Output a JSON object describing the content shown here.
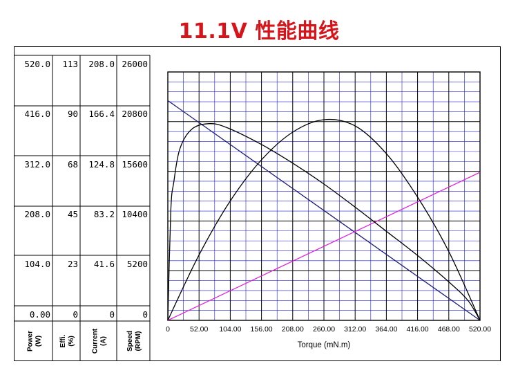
{
  "title": "11.1V 性能曲线",
  "chart_data": {
    "type": "line",
    "title": "11.1V 性能曲线",
    "xlabel": "Torque (mN.m)",
    "x_ticks": [
      "0",
      "52.00",
      "104.00",
      "156.00",
      "208.00",
      "260.00",
      "312.00",
      "364.00",
      "416.00",
      "468.00",
      "520.00"
    ],
    "xlim": [
      0,
      520
    ],
    "grid": true,
    "y_axes": [
      {
        "label": "Power (W)",
        "ticks": [
          "520.0",
          "416.0",
          "312.0",
          "208.0",
          "104.0",
          "0.00"
        ],
        "range": [
          0,
          520
        ]
      },
      {
        "label": "Effi. (%)",
        "ticks": [
          "113",
          "90",
          "68",
          "45",
          "23",
          "0"
        ],
        "range": [
          0,
          113
        ]
      },
      {
        "label": "Current (A)",
        "ticks": [
          "208.0",
          "166.4",
          "124.8",
          "83.2",
          "41.6",
          "0"
        ],
        "range": [
          0,
          208
        ]
      },
      {
        "label": "Speed (RPM)",
        "ticks": [
          "26000",
          "20800",
          "15600",
          "10400",
          "5200",
          "0"
        ],
        "range": [
          0,
          26000
        ]
      }
    ],
    "series": [
      {
        "color": "#1b1b7a",
        "axis": "Speed (RPM)",
        "x": [
          0,
          520
        ],
        "y": [
          23000,
          0
        ]
      },
      {
        "color": "#e020d8",
        "axis": "Current (A)",
        "x": [
          0,
          520
        ],
        "y": [
          0,
          124
        ]
      },
      {
        "color": "#000000",
        "axis": "Power (W)",
        "x": [
          0,
          52,
          104,
          156,
          208,
          260,
          312,
          364,
          416,
          468,
          520
        ],
        "y": [
          0,
          137,
          250,
          336,
          394,
          420,
          407,
          349,
          258,
          144,
          0
        ]
      },
      {
        "color": "#000000",
        "axis": "Effi. (%)",
        "x": [
          0,
          5,
          10,
          20,
          40,
          70,
          100,
          156,
          208,
          260,
          312,
          364,
          416,
          468,
          500,
          520
        ],
        "y": [
          0,
          50,
          63,
          78,
          87,
          89.5,
          87.5,
          80,
          71.5,
          62,
          51.5,
          40.5,
          29.5,
          17.5,
          9,
          0
        ]
      }
    ]
  },
  "colors": {
    "title": "#d8141b",
    "grid_major": "#000000",
    "grid_minor": "#1d1dd1",
    "speed": "#1b1b7a",
    "current": "#e020d8",
    "power": "#000000",
    "efficiency": "#000000"
  }
}
